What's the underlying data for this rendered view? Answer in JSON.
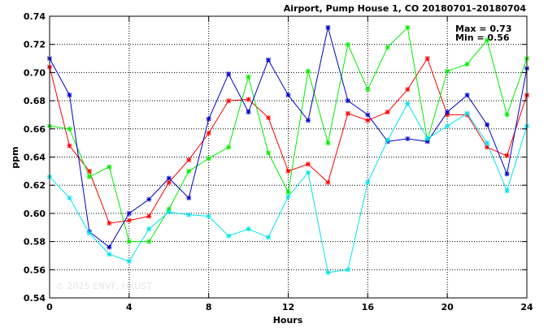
{
  "chart_data": {
    "type": "line",
    "title": "Airport, Pump House 1, CO 20180701–20180704",
    "stats": [
      "Max = 0.73",
      "Min = 0.56"
    ],
    "watermark": "© 2025  ENVF, HKUST",
    "xlabel": "Hours",
    "ylabel": "ppm",
    "xlim": [
      0,
      24
    ],
    "ylim": [
      0.54,
      0.74
    ],
    "xticks": [
      "0",
      "4",
      "8",
      "12",
      "16",
      "20",
      "24"
    ],
    "yticks": [
      "0.54",
      "0.56",
      "0.58",
      "0.60",
      "0.62",
      "0.64",
      "0.66",
      "0.68",
      "0.70",
      "0.72",
      "0.74"
    ],
    "grid": true,
    "x": [
      0,
      1,
      2,
      3,
      4,
      5,
      6,
      7,
      8,
      9,
      10,
      11,
      12,
      13,
      14,
      15,
      16,
      17,
      18,
      19,
      20,
      21,
      22,
      23,
      24
    ],
    "series": [
      {
        "color": "#ff0000",
        "values": [
          0.704,
          0.648,
          0.63,
          0.593,
          0.595,
          0.598,
          0.622,
          0.638,
          0.657,
          0.68,
          0.681,
          0.668,
          0.63,
          0.635,
          0.622,
          0.671,
          0.666,
          0.672,
          0.688,
          0.71,
          0.67,
          0.67,
          0.647,
          0.641,
          0.684
        ]
      },
      {
        "color": "#00ee00",
        "values": [
          0.662,
          0.66,
          0.626,
          0.633,
          0.58,
          0.58,
          0.603,
          0.63,
          0.639,
          0.647,
          0.697,
          0.643,
          0.615,
          0.701,
          0.65,
          0.72,
          0.688,
          0.718,
          0.732,
          0.652,
          0.701,
          0.706,
          0.723,
          0.67,
          0.71
        ]
      },
      {
        "color": "#0000cc",
        "values": [
          0.71,
          0.684,
          0.587,
          0.576,
          0.6,
          0.61,
          0.625,
          0.611,
          0.667,
          0.699,
          0.672,
          0.709,
          0.684,
          0.666,
          0.732,
          0.68,
          0.67,
          0.651,
          0.653,
          0.651,
          0.672,
          0.684,
          0.663,
          0.628,
          0.703
        ]
      },
      {
        "color": "#00e5ee",
        "values": [
          0.626,
          0.611,
          0.586,
          0.571,
          0.566,
          0.589,
          0.601,
          0.599,
          0.598,
          0.584,
          0.589,
          0.583,
          0.612,
          0.629,
          0.558,
          0.56,
          0.622,
          0.652,
          0.678,
          0.653,
          0.662,
          0.671,
          0.65,
          0.616,
          0.662
        ]
      }
    ]
  }
}
